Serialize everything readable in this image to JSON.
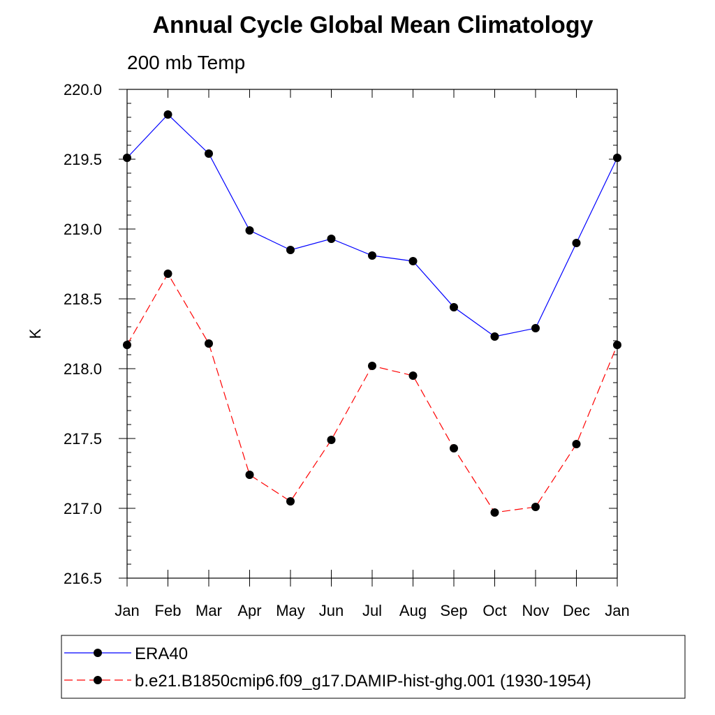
{
  "chart_data": {
    "type": "line",
    "title": "Annual Cycle Global Mean Climatology",
    "subtitle": "200 mb Temp",
    "xlabel": "",
    "ylabel": "K",
    "categories": [
      "Jan",
      "Feb",
      "Mar",
      "Apr",
      "May",
      "Jun",
      "Jul",
      "Aug",
      "Sep",
      "Oct",
      "Nov",
      "Dec",
      "Jan"
    ],
    "ylim": [
      216.5,
      220.0
    ],
    "yticks": [
      "216.5",
      "217.0",
      "217.5",
      "218.0",
      "218.5",
      "219.0",
      "219.5",
      "220.0"
    ],
    "grid": false,
    "legend_position": "bottom",
    "series": [
      {
        "name": "ERA40",
        "color": "#0000ff",
        "line_style": "solid",
        "marker": "filled-circle",
        "values": [
          219.51,
          219.82,
          219.54,
          218.99,
          218.85,
          218.93,
          218.81,
          218.77,
          218.44,
          218.23,
          218.29,
          218.9,
          219.51
        ]
      },
      {
        "name": "b.e21.B1850cmip6.f09_g17.DAMIP-hist-ghg.001 (1930-1954)",
        "color": "#ff0000",
        "line_style": "dashed",
        "marker": "filled-circle",
        "values": [
          218.17,
          218.68,
          218.18,
          217.24,
          217.05,
          217.49,
          218.02,
          217.95,
          217.43,
          216.97,
          217.01,
          217.46,
          218.17
        ]
      }
    ]
  }
}
